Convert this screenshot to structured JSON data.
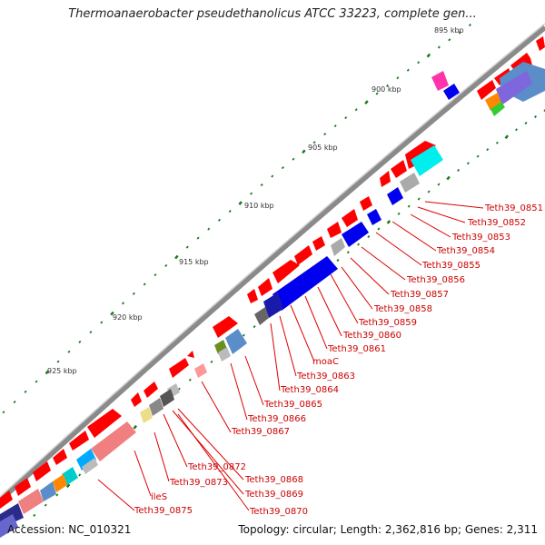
{
  "title": "Thermoanaerobacter pseudethanolicus ATCC 33223, complete gen...",
  "footer": {
    "accession": "Accession: NC_010321",
    "topology": "Topology: circular; Length: 2,362,816 bp; Genes: 2,311"
  },
  "ticks": [
    "895 kbp",
    "900 kbp",
    "905 kbp",
    "910 kbp",
    "915 kbp",
    "920 kbp",
    "925 kbp"
  ],
  "gene_labels": [
    "Teth39_0851",
    "Teth39_0852",
    "Teth39_0853",
    "Teth39_0854",
    "Teth39_0855",
    "Teth39_0856",
    "Teth39_0857",
    "Teth39_0858",
    "Teth39_0859",
    "Teth39_0860",
    "Teth39_0861",
    "moaC",
    "Teth39_0863",
    "Teth39_0864",
    "Teth39_0865",
    "Teth39_0866",
    "Teth39_0867",
    "Teth39_0872",
    "Teth39_0873",
    "Teth39_0868",
    "Teth39_0869",
    "ileS",
    "Teth39_0870",
    "Teth39_0875"
  ],
  "colors": {
    "gene_label": "#cc0000",
    "leader_line": "#dd0000",
    "forward_gene": "#ff0000",
    "backbone": "#8a8a8a",
    "tick_dots": "#1a7a1a"
  }
}
